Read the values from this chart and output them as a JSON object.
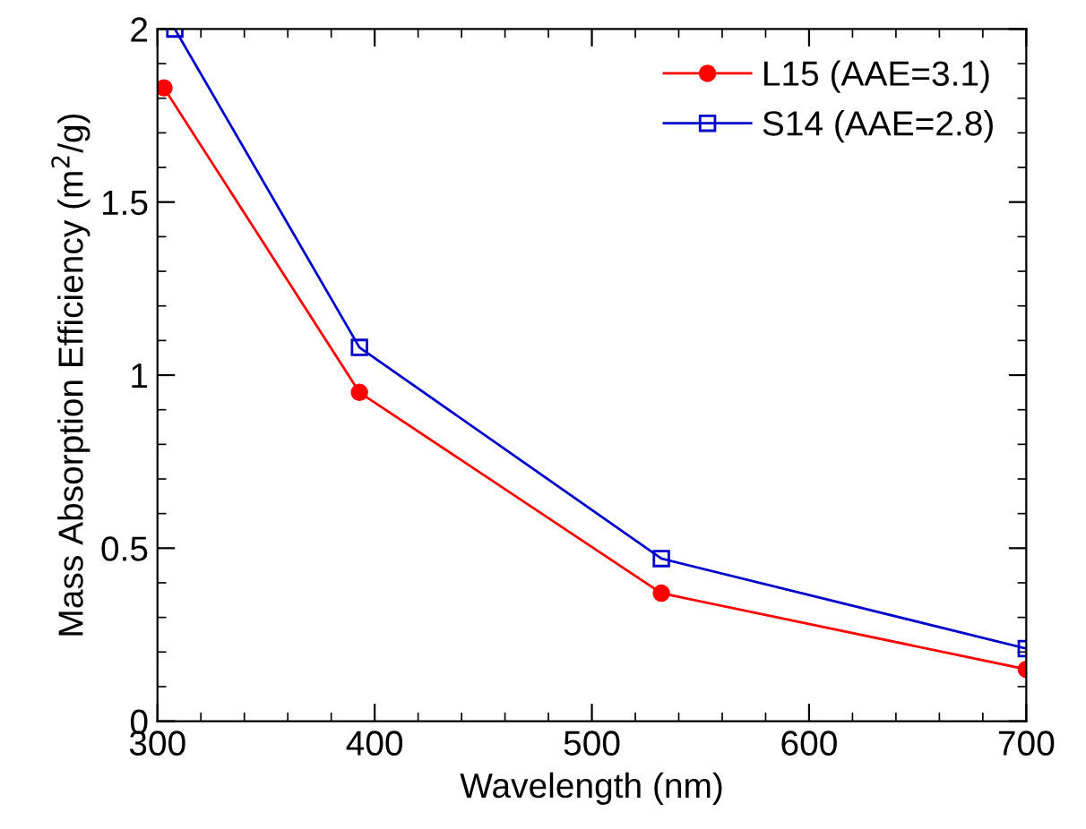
{
  "chart_data": {
    "type": "line",
    "xlabel": "Wavelength (nm)",
    "ylabel": "Mass Absorption Efficiency (m$^{2}$/g)",
    "xlim": [
      300,
      700
    ],
    "xticks": [
      300,
      400,
      500,
      600,
      700
    ],
    "ylim": [
      0,
      2
    ],
    "yticks": [
      0,
      {
        "value": 0.5,
        "label": "0.5"
      },
      1,
      {
        "value": 1.5,
        "label": "1.5"
      },
      2
    ],
    "grid": false,
    "legend": "top right",
    "series": [
      {
        "name": "L15 (AAE=3.1)",
        "color": "#ff0000",
        "marker": "circle",
        "x": [
          303,
          393,
          532,
          700
        ],
        "values": [
          1.83,
          0.95,
          0.37,
          0.15
        ]
      },
      {
        "name": "S14 (AAE=2.8)",
        "color": "#0000cc",
        "marker": "square",
        "x": [
          308,
          393,
          532,
          700
        ],
        "values": [
          2.0,
          1.08,
          0.47,
          0.21
        ]
      }
    ]
  }
}
